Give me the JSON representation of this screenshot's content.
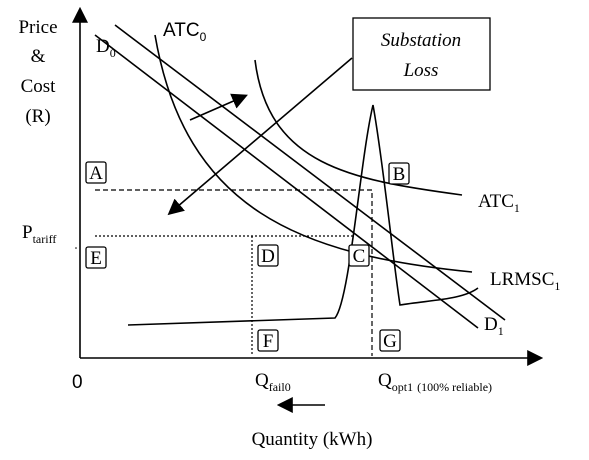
{
  "y_axis_label": [
    "Price",
    "&",
    "Cost",
    "(R)"
  ],
  "x_axis_label": "Quantity (kWh)",
  "origin": "0",
  "callout": [
    "Substation",
    "Loss"
  ],
  "curves": {
    "d0": {
      "text": "D",
      "sub": "0"
    },
    "d1": {
      "text": "D",
      "sub": "1"
    },
    "atc0": {
      "text": "ATC",
      "sub": "0"
    },
    "atc1": {
      "text": "ATC",
      "sub": "1"
    },
    "lrmsc1": {
      "text": "LRMSC",
      "sub": "1"
    }
  },
  "p_tariff": {
    "text": "P",
    "sub": "tariff"
  },
  "q_fail": {
    "text": "Q",
    "sub": "fail0"
  },
  "q_opt": {
    "text": "Q",
    "sub": "opt1",
    "note": "(100% reliable)"
  },
  "points": [
    "A",
    "B",
    "C",
    "D",
    "E",
    "F",
    "G"
  ]
}
